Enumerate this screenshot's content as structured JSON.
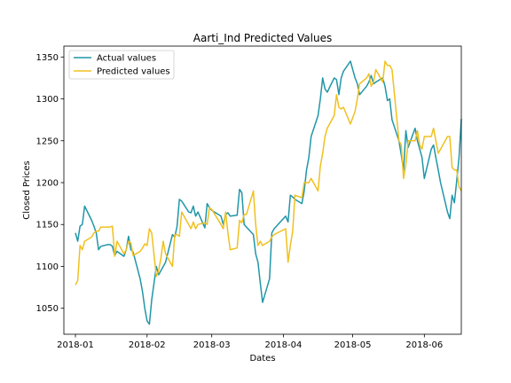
{
  "chart_data": {
    "type": "line",
    "title": "Aarti_Ind Predicted Values",
    "xlabel": "Dates",
    "ylabel": "Closed Prices",
    "x_tick_labels": [
      "2018-01",
      "2018-02",
      "2018-03",
      "2018-04",
      "2018-05",
      "2018-06"
    ],
    "y_ticks": [
      1050,
      1100,
      1150,
      1200,
      1250,
      1300,
      1350
    ],
    "xlim": [
      "2017-12-27",
      "2018-06-17"
    ],
    "ylim": [
      1019,
      1363
    ],
    "legend_position": "top-left",
    "series": [
      {
        "name": "Actual values",
        "color": "#2196a8",
        "points": [
          [
            "2018-01-01",
            1140
          ],
          [
            "2018-01-02",
            1130
          ],
          [
            "2018-01-03",
            1148
          ],
          [
            "2018-01-04",
            1150
          ],
          [
            "2018-01-05",
            1172
          ],
          [
            "2018-01-08",
            1155
          ],
          [
            "2018-01-09",
            1148
          ],
          [
            "2018-01-10",
            1140
          ],
          [
            "2018-01-11",
            1120
          ],
          [
            "2018-01-12",
            1124
          ],
          [
            "2018-01-15",
            1126
          ],
          [
            "2018-01-16",
            1126
          ],
          [
            "2018-01-17",
            1124
          ],
          [
            "2018-01-18",
            1113
          ],
          [
            "2018-01-19",
            1118
          ],
          [
            "2018-01-22",
            1112
          ],
          [
            "2018-01-23",
            1120
          ],
          [
            "2018-01-24",
            1136
          ],
          [
            "2018-01-25",
            1120
          ],
          [
            "2018-01-26",
            1117
          ],
          [
            "2018-01-29",
            1085
          ],
          [
            "2018-01-30",
            1070
          ],
          [
            "2018-01-31",
            1050
          ],
          [
            "2018-02-01",
            1035
          ],
          [
            "2018-02-02",
            1031
          ],
          [
            "2018-02-03",
            1060
          ],
          [
            "2018-02-05",
            1100
          ],
          [
            "2018-02-06",
            1090
          ],
          [
            "2018-02-07",
            1095
          ],
          [
            "2018-02-08",
            1100
          ],
          [
            "2018-02-09",
            1105
          ],
          [
            "2018-02-12",
            1138
          ],
          [
            "2018-02-13",
            1135
          ],
          [
            "2018-02-14",
            1148
          ],
          [
            "2018-02-15",
            1180
          ],
          [
            "2018-02-16",
            1178
          ],
          [
            "2018-02-19",
            1165
          ],
          [
            "2018-02-20",
            1164
          ],
          [
            "2018-02-21",
            1172
          ],
          [
            "2018-02-22",
            1160
          ],
          [
            "2018-02-23",
            1165
          ],
          [
            "2018-02-26",
            1146
          ],
          [
            "2018-02-27",
            1175
          ],
          [
            "2018-02-28",
            1170
          ],
          [
            "2018-03-01",
            1167
          ],
          [
            "2018-03-05",
            1160
          ],
          [
            "2018-03-06",
            1150
          ],
          [
            "2018-03-07",
            1162
          ],
          [
            "2018-03-08",
            1164
          ],
          [
            "2018-03-09",
            1160
          ],
          [
            "2018-03-12",
            1161
          ],
          [
            "2018-03-13",
            1192
          ],
          [
            "2018-03-14",
            1188
          ],
          [
            "2018-03-15",
            1150
          ],
          [
            "2018-03-16",
            1147
          ],
          [
            "2018-03-19",
            1138
          ],
          [
            "2018-03-20",
            1115
          ],
          [
            "2018-03-21",
            1105
          ],
          [
            "2018-03-22",
            1080
          ],
          [
            "2018-03-23",
            1057
          ],
          [
            "2018-03-26",
            1085
          ],
          [
            "2018-03-27",
            1140
          ],
          [
            "2018-03-28",
            1145
          ],
          [
            "2018-04-02",
            1160
          ],
          [
            "2018-04-03",
            1153
          ],
          [
            "2018-04-04",
            1185
          ],
          [
            "2018-04-05",
            1183
          ],
          [
            "2018-04-06",
            1180
          ],
          [
            "2018-04-09",
            1175
          ],
          [
            "2018-04-10",
            1190
          ],
          [
            "2018-04-11",
            1215
          ],
          [
            "2018-04-12",
            1230
          ],
          [
            "2018-04-13",
            1255
          ],
          [
            "2018-04-16",
            1280
          ],
          [
            "2018-04-17",
            1300
          ],
          [
            "2018-04-18",
            1325
          ],
          [
            "2018-04-19",
            1312
          ],
          [
            "2018-04-20",
            1308
          ],
          [
            "2018-04-23",
            1325
          ],
          [
            "2018-04-24",
            1323
          ],
          [
            "2018-04-25",
            1305
          ],
          [
            "2018-04-26",
            1325
          ],
          [
            "2018-04-27",
            1333
          ],
          [
            "2018-04-30",
            1345
          ],
          [
            "2018-05-02",
            1325
          ],
          [
            "2018-05-03",
            1318
          ],
          [
            "2018-05-04",
            1305
          ],
          [
            "2018-05-07",
            1315
          ],
          [
            "2018-05-08",
            1320
          ],
          [
            "2018-05-09",
            1328
          ],
          [
            "2018-05-10",
            1318
          ],
          [
            "2018-05-11",
            1320
          ],
          [
            "2018-05-14",
            1325
          ],
          [
            "2018-05-15",
            1315
          ],
          [
            "2018-05-16",
            1298
          ],
          [
            "2018-05-17",
            1300
          ],
          [
            "2018-05-18",
            1275
          ],
          [
            "2018-05-21",
            1250
          ],
          [
            "2018-05-22",
            1233
          ],
          [
            "2018-05-23",
            1215
          ],
          [
            "2018-05-24",
            1262
          ],
          [
            "2018-05-25",
            1242
          ],
          [
            "2018-05-28",
            1265
          ],
          [
            "2018-05-29",
            1250
          ],
          [
            "2018-05-30",
            1240
          ],
          [
            "2018-05-31",
            1230
          ],
          [
            "2018-06-01",
            1205
          ],
          [
            "2018-06-04",
            1240
          ],
          [
            "2018-06-05",
            1245
          ],
          [
            "2018-06-06",
            1230
          ],
          [
            "2018-06-07",
            1215
          ],
          [
            "2018-06-08",
            1200
          ],
          [
            "2018-06-11",
            1165
          ],
          [
            "2018-06-12",
            1157
          ],
          [
            "2018-06-13",
            1185
          ],
          [
            "2018-06-14",
            1176
          ],
          [
            "2018-06-15",
            1202
          ],
          [
            "2018-06-16",
            1230
          ],
          [
            "2018-06-17",
            1276
          ]
        ]
      },
      {
        "name": "Predicted values",
        "color": "#f0c020",
        "points": [
          [
            "2018-01-01",
            1078
          ],
          [
            "2018-01-02",
            1083
          ],
          [
            "2018-01-03",
            1125
          ],
          [
            "2018-01-04",
            1120
          ],
          [
            "2018-01-05",
            1130
          ],
          [
            "2018-01-08",
            1135
          ],
          [
            "2018-01-09",
            1140
          ],
          [
            "2018-01-10",
            1142
          ],
          [
            "2018-01-11",
            1142
          ],
          [
            "2018-01-12",
            1147
          ],
          [
            "2018-01-15",
            1147
          ],
          [
            "2018-01-16",
            1147
          ],
          [
            "2018-01-17",
            1148
          ],
          [
            "2018-01-18",
            1112
          ],
          [
            "2018-01-19",
            1130
          ],
          [
            "2018-01-22",
            1115
          ],
          [
            "2018-01-23",
            1120
          ],
          [
            "2018-01-24",
            1130
          ],
          [
            "2018-01-25",
            1128
          ],
          [
            "2018-01-26",
            1113
          ],
          [
            "2018-01-29",
            1118
          ],
          [
            "2018-01-30",
            1122
          ],
          [
            "2018-01-31",
            1127
          ],
          [
            "2018-02-01",
            1125
          ],
          [
            "2018-02-02",
            1145
          ],
          [
            "2018-02-03",
            1140
          ],
          [
            "2018-02-05",
            1088
          ],
          [
            "2018-02-06",
            1095
          ],
          [
            "2018-02-07",
            1110
          ],
          [
            "2018-02-08",
            1130
          ],
          [
            "2018-02-09",
            1115
          ],
          [
            "2018-02-12",
            1100
          ],
          [
            "2018-02-13",
            1138
          ],
          [
            "2018-02-14",
            1138
          ],
          [
            "2018-02-15",
            1136
          ],
          [
            "2018-02-16",
            1165
          ],
          [
            "2018-02-19",
            1150
          ],
          [
            "2018-02-20",
            1145
          ],
          [
            "2018-02-21",
            1153
          ],
          [
            "2018-02-22",
            1145
          ],
          [
            "2018-02-23",
            1150
          ],
          [
            "2018-02-26",
            1152
          ],
          [
            "2018-02-27",
            1150
          ],
          [
            "2018-02-28",
            1170
          ],
          [
            "2018-03-01",
            1168
          ],
          [
            "2018-03-05",
            1150
          ],
          [
            "2018-03-06",
            1145
          ],
          [
            "2018-03-07",
            1165
          ],
          [
            "2018-03-08",
            1140
          ],
          [
            "2018-03-09",
            1120
          ],
          [
            "2018-03-12",
            1122
          ],
          [
            "2018-03-13",
            1155
          ],
          [
            "2018-03-14",
            1152
          ],
          [
            "2018-03-15",
            1162
          ],
          [
            "2018-03-16",
            1162
          ],
          [
            "2018-03-19",
            1190
          ],
          [
            "2018-03-20",
            1150
          ],
          [
            "2018-03-21",
            1125
          ],
          [
            "2018-03-22",
            1130
          ],
          [
            "2018-03-23",
            1125
          ],
          [
            "2018-03-26",
            1130
          ],
          [
            "2018-03-27",
            1135
          ],
          [
            "2018-03-28",
            1138
          ],
          [
            "2018-04-02",
            1145
          ],
          [
            "2018-04-03",
            1105
          ],
          [
            "2018-04-04",
            1125
          ],
          [
            "2018-04-05",
            1142
          ],
          [
            "2018-04-06",
            1185
          ],
          [
            "2018-04-09",
            1182
          ],
          [
            "2018-04-10",
            1200
          ],
          [
            "2018-04-11",
            1200
          ],
          [
            "2018-04-12",
            1200
          ],
          [
            "2018-04-13",
            1205
          ],
          [
            "2018-04-16",
            1190
          ],
          [
            "2018-04-17",
            1220
          ],
          [
            "2018-04-18",
            1235
          ],
          [
            "2018-04-19",
            1255
          ],
          [
            "2018-04-20",
            1265
          ],
          [
            "2018-04-23",
            1280
          ],
          [
            "2018-04-24",
            1305
          ],
          [
            "2018-04-25",
            1290
          ],
          [
            "2018-04-26",
            1288
          ],
          [
            "2018-04-27",
            1290
          ],
          [
            "2018-04-30",
            1270
          ],
          [
            "2018-05-02",
            1285
          ],
          [
            "2018-05-03",
            1300
          ],
          [
            "2018-05-04",
            1318
          ],
          [
            "2018-05-07",
            1325
          ],
          [
            "2018-05-08",
            1330
          ],
          [
            "2018-05-09",
            1315
          ],
          [
            "2018-05-10",
            1320
          ],
          [
            "2018-05-11",
            1335
          ],
          [
            "2018-05-14",
            1320
          ],
          [
            "2018-05-15",
            1345
          ],
          [
            "2018-05-16",
            1340
          ],
          [
            "2018-05-17",
            1340
          ],
          [
            "2018-05-18",
            1335
          ],
          [
            "2018-05-21",
            1250
          ],
          [
            "2018-05-22",
            1245
          ],
          [
            "2018-05-23",
            1205
          ],
          [
            "2018-05-24",
            1222
          ],
          [
            "2018-05-25",
            1250
          ],
          [
            "2018-05-28",
            1250
          ],
          [
            "2018-05-29",
            1262
          ],
          [
            "2018-05-30",
            1245
          ],
          [
            "2018-05-31",
            1240
          ],
          [
            "2018-06-01",
            1255
          ],
          [
            "2018-06-04",
            1255
          ],
          [
            "2018-06-05",
            1265
          ],
          [
            "2018-06-06",
            1250
          ],
          [
            "2018-06-07",
            1235
          ],
          [
            "2018-06-08",
            1240
          ],
          [
            "2018-06-11",
            1255
          ],
          [
            "2018-06-12",
            1255
          ],
          [
            "2018-06-13",
            1218
          ],
          [
            "2018-06-14",
            1215
          ],
          [
            "2018-06-15",
            1215
          ],
          [
            "2018-06-16",
            1195
          ],
          [
            "2018-06-17",
            1190
          ]
        ]
      }
    ]
  }
}
